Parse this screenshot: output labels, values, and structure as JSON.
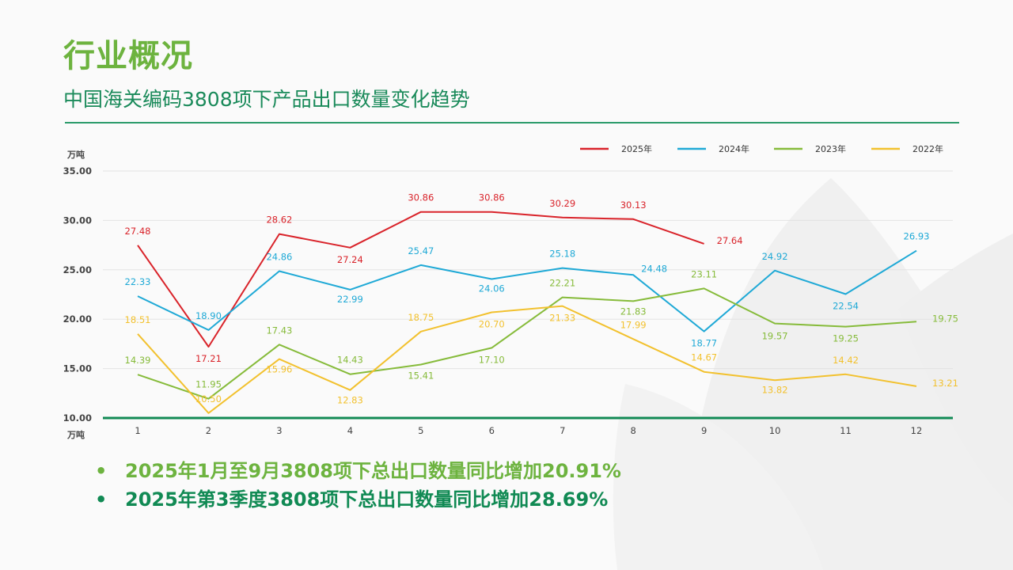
{
  "page": {
    "title": "行业概况",
    "subtitle": "中国海关编码3808项下产品出口数量变化趋势"
  },
  "bullets": [
    {
      "marker": "•",
      "text": "2025年1月至9月3808项下总出口数量同比增加20.91%"
    },
    {
      "marker": "•",
      "text": "2025年第3季度3808项下总出口数量同比增加28.69%"
    }
  ],
  "chart_data": {
    "type": "line",
    "title": "",
    "ylabel": "万吨",
    "xlabel": "万吨",
    "ylim": [
      10,
      35
    ],
    "yticks": [
      "10.00",
      "15.00",
      "20.00",
      "25.00",
      "30.00",
      "35.00"
    ],
    "ytick_values": [
      10,
      15,
      20,
      25,
      30,
      35
    ],
    "categories": [
      "1",
      "2",
      "3",
      "4",
      "5",
      "6",
      "7",
      "8",
      "9",
      "10",
      "11",
      "12"
    ],
    "grid": true,
    "legend_position": "top-right",
    "series": [
      {
        "name": "2025年",
        "color": "#d9232a",
        "values": [
          27.48,
          17.21,
          28.62,
          27.24,
          30.86,
          30.86,
          30.29,
          30.13,
          27.64,
          null,
          null,
          null
        ]
      },
      {
        "name": "2024年",
        "color": "#1fa9d6",
        "values": [
          22.33,
          18.9,
          24.86,
          22.99,
          25.47,
          24.06,
          25.18,
          24.48,
          18.77,
          24.92,
          22.54,
          26.93
        ]
      },
      {
        "name": "2023年",
        "color": "#86bb3a",
        "values": [
          14.39,
          11.95,
          17.43,
          14.43,
          15.41,
          17.1,
          22.21,
          21.83,
          23.11,
          19.57,
          19.25,
          19.75
        ]
      },
      {
        "name": "2022年",
        "color": "#f2c12e",
        "values": [
          18.51,
          10.5,
          15.96,
          12.83,
          18.75,
          20.7,
          21.33,
          17.99,
          14.67,
          13.82,
          14.42,
          13.21
        ]
      }
    ],
    "data_labels": [
      [
        "27.48",
        "17.21",
        "28.62",
        "27.24",
        "30.86",
        "30.86",
        "30.29",
        "30.13",
        "27.64",
        null,
        null,
        null
      ],
      [
        "22.33",
        "18.90",
        "24.86",
        "22.99",
        "25.47",
        "24.06",
        "25.18",
        "24.48",
        "18.77",
        "24.92",
        "22.54",
        "26.93"
      ],
      [
        "14.39",
        "11.95",
        "17.43",
        "14.43",
        "15.41",
        "17.10",
        "22.21",
        "21.83",
        "23.11",
        "19.57",
        "19.25",
        "19.75"
      ],
      [
        "18.51",
        "10.50",
        "15.96",
        "12.83",
        "18.75",
        "20.70",
        "21.33",
        "17.99",
        "14.67",
        "13.82",
        "14.42",
        "13.21"
      ]
    ],
    "axis_color": "#118a54"
  }
}
